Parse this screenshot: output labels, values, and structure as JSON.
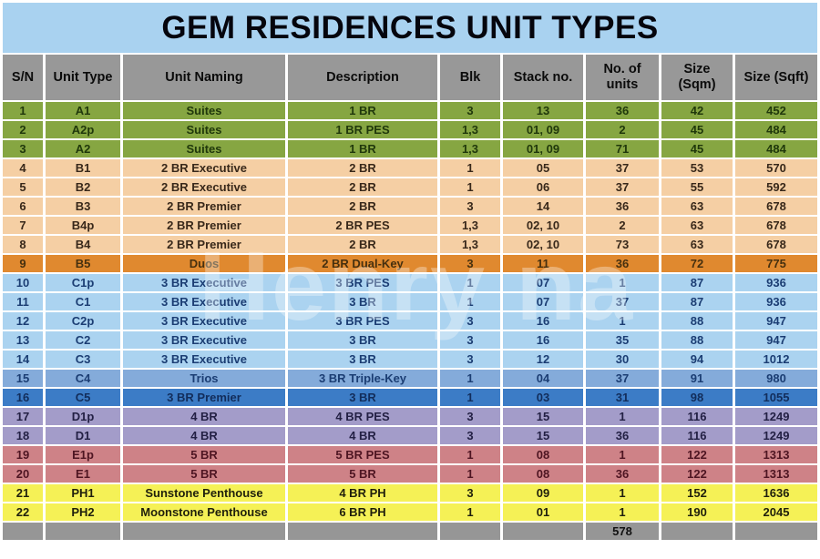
{
  "title": "GEM RESIDENCES UNIT TYPES",
  "watermark": "Henry na",
  "columns": [
    "S/N",
    "Unit Type",
    "Unit Naming",
    "Description",
    "Blk",
    "Stack no.",
    "No. of units",
    "Size (Sqm)",
    "Size (Sqft)"
  ],
  "row_keys": [
    "sn",
    "unit_type",
    "unit_naming",
    "description",
    "blk",
    "stack_no",
    "units",
    "size_sqm",
    "size_sqft"
  ],
  "rows": [
    {
      "sn": "1",
      "unit_type": "A1",
      "unit_naming": "Suites",
      "description": "1 BR",
      "blk": "3",
      "stack_no": "13",
      "units": "36",
      "size_sqm": "42",
      "size_sqft": "452",
      "section": "green"
    },
    {
      "sn": "2",
      "unit_type": "A2p",
      "unit_naming": "Suites",
      "description": "1 BR PES",
      "blk": "1,3",
      "stack_no": "01, 09",
      "units": "2",
      "size_sqm": "45",
      "size_sqft": "484",
      "section": "green"
    },
    {
      "sn": "3",
      "unit_type": "A2",
      "unit_naming": "Suites",
      "description": "1 BR",
      "blk": "1,3",
      "stack_no": "01, 09",
      "units": "71",
      "size_sqm": "45",
      "size_sqft": "484",
      "section": "green"
    },
    {
      "sn": "4",
      "unit_type": "B1",
      "unit_naming": "2 BR Executive",
      "description": "2 BR",
      "blk": "1",
      "stack_no": "05",
      "units": "37",
      "size_sqm": "53",
      "size_sqft": "570",
      "section": "peach"
    },
    {
      "sn": "5",
      "unit_type": "B2",
      "unit_naming": "2 BR Executive",
      "description": "2 BR",
      "blk": "1",
      "stack_no": "06",
      "units": "37",
      "size_sqm": "55",
      "size_sqft": "592",
      "section": "peach"
    },
    {
      "sn": "6",
      "unit_type": "B3",
      "unit_naming": "2 BR Premier",
      "description": "2 BR",
      "blk": "3",
      "stack_no": "14",
      "units": "36",
      "size_sqm": "63",
      "size_sqft": "678",
      "section": "peach"
    },
    {
      "sn": "7",
      "unit_type": "B4p",
      "unit_naming": "2 BR Premier",
      "description": "2 BR PES",
      "blk": "1,3",
      "stack_no": "02, 10",
      "units": "2",
      "size_sqm": "63",
      "size_sqft": "678",
      "section": "peach"
    },
    {
      "sn": "8",
      "unit_type": "B4",
      "unit_naming": "2 BR Premier",
      "description": "2 BR",
      "blk": "1,3",
      "stack_no": "02, 10",
      "units": "73",
      "size_sqm": "63",
      "size_sqft": "678",
      "section": "peach"
    },
    {
      "sn": "9",
      "unit_type": "B5",
      "unit_naming": "Duos",
      "description": "2 BR Dual-Key",
      "blk": "3",
      "stack_no": "11",
      "units": "36",
      "size_sqm": "72",
      "size_sqft": "775",
      "section": "orange"
    },
    {
      "sn": "10",
      "unit_type": "C1p",
      "unit_naming": "3 BR Executive",
      "description": "3 BR PES",
      "blk": "1",
      "stack_no": "07",
      "units": "1",
      "size_sqm": "87",
      "size_sqft": "936",
      "section": "lightblue"
    },
    {
      "sn": "11",
      "unit_type": "C1",
      "unit_naming": "3 BR Executive",
      "description": "3 BR",
      "blk": "1",
      "stack_no": "07",
      "units": "37",
      "size_sqm": "87",
      "size_sqft": "936",
      "section": "lightblue"
    },
    {
      "sn": "12",
      "unit_type": "C2p",
      "unit_naming": "3 BR Executive",
      "description": "3 BR PES",
      "blk": "3",
      "stack_no": "16",
      "units": "1",
      "size_sqm": "88",
      "size_sqft": "947",
      "section": "lightblue"
    },
    {
      "sn": "13",
      "unit_type": "C2",
      "unit_naming": "3 BR Executive",
      "description": "3 BR",
      "blk": "3",
      "stack_no": "16",
      "units": "35",
      "size_sqm": "88",
      "size_sqft": "947",
      "section": "lightblue"
    },
    {
      "sn": "14",
      "unit_type": "C3",
      "unit_naming": "3 BR Executive",
      "description": "3 BR",
      "blk": "3",
      "stack_no": "12",
      "units": "30",
      "size_sqm": "94",
      "size_sqft": "1012",
      "section": "lightblue"
    },
    {
      "sn": "15",
      "unit_type": "C4",
      "unit_naming": "Trios",
      "description": "3 BR Triple-Key",
      "blk": "1",
      "stack_no": "04",
      "units": "37",
      "size_sqm": "91",
      "size_sqft": "980",
      "section": "medblue"
    },
    {
      "sn": "16",
      "unit_type": "C5",
      "unit_naming": "3 BR Premier",
      "description": "3 BR",
      "blk": "1",
      "stack_no": "03",
      "units": "31",
      "size_sqm": "98",
      "size_sqft": "1055",
      "section": "blue"
    },
    {
      "sn": "17",
      "unit_type": "D1p",
      "unit_naming": "4 BR",
      "description": "4 BR PES",
      "blk": "3",
      "stack_no": "15",
      "units": "1",
      "size_sqm": "116",
      "size_sqft": "1249",
      "section": "purple"
    },
    {
      "sn": "18",
      "unit_type": "D1",
      "unit_naming": "4 BR",
      "description": "4 BR",
      "blk": "3",
      "stack_no": "15",
      "units": "36",
      "size_sqm": "116",
      "size_sqft": "1249",
      "section": "purple"
    },
    {
      "sn": "19",
      "unit_type": "E1p",
      "unit_naming": "5 BR",
      "description": "5 BR PES",
      "blk": "1",
      "stack_no": "08",
      "units": "1",
      "size_sqm": "122",
      "size_sqft": "1313",
      "section": "rose"
    },
    {
      "sn": "20",
      "unit_type": "E1",
      "unit_naming": "5 BR",
      "description": "5 BR",
      "blk": "1",
      "stack_no": "08",
      "units": "36",
      "size_sqm": "122",
      "size_sqft": "1313",
      "section": "rose"
    },
    {
      "sn": "21",
      "unit_type": "PH1",
      "unit_naming": "Sunstone Penthouse",
      "description": "4 BR PH",
      "blk": "3",
      "stack_no": "09",
      "units": "1",
      "size_sqm": "152",
      "size_sqft": "1636",
      "section": "yellow"
    },
    {
      "sn": "22",
      "unit_type": "PH2",
      "unit_naming": "Moonstone Penthouse",
      "description": "6 BR PH",
      "blk": "1",
      "stack_no": "01",
      "units": "1",
      "size_sqm": "190",
      "size_sqft": "2045",
      "section": "yellow"
    }
  ],
  "footer": {
    "total_units": "578"
  },
  "colors": {
    "title_bg": "#a9d2f0",
    "title_text": "#05050d",
    "header_bg": "#989898",
    "footer_bg": "#969696",
    "footer_text": "#111111",
    "sections": {
      "green": {
        "bg": "#86a642",
        "text": "#20380b"
      },
      "peach": {
        "bg": "#f5cfa4",
        "text": "#38281a"
      },
      "orange": {
        "bg": "#e0892f",
        "text": "#46300f"
      },
      "lightblue": {
        "bg": "#abd3f0",
        "text": "#1b3d73"
      },
      "medblue": {
        "bg": "#84abda",
        "text": "#1b3d73"
      },
      "blue": {
        "bg": "#3c7cc6",
        "text": "#122d5b"
      },
      "purple": {
        "bg": "#a39cc9",
        "text": "#232044"
      },
      "rose": {
        "bg": "#ce8287",
        "text": "#4e1522"
      },
      "yellow": {
        "bg": "#f5f156",
        "text": "#1f1f0c"
      }
    }
  }
}
